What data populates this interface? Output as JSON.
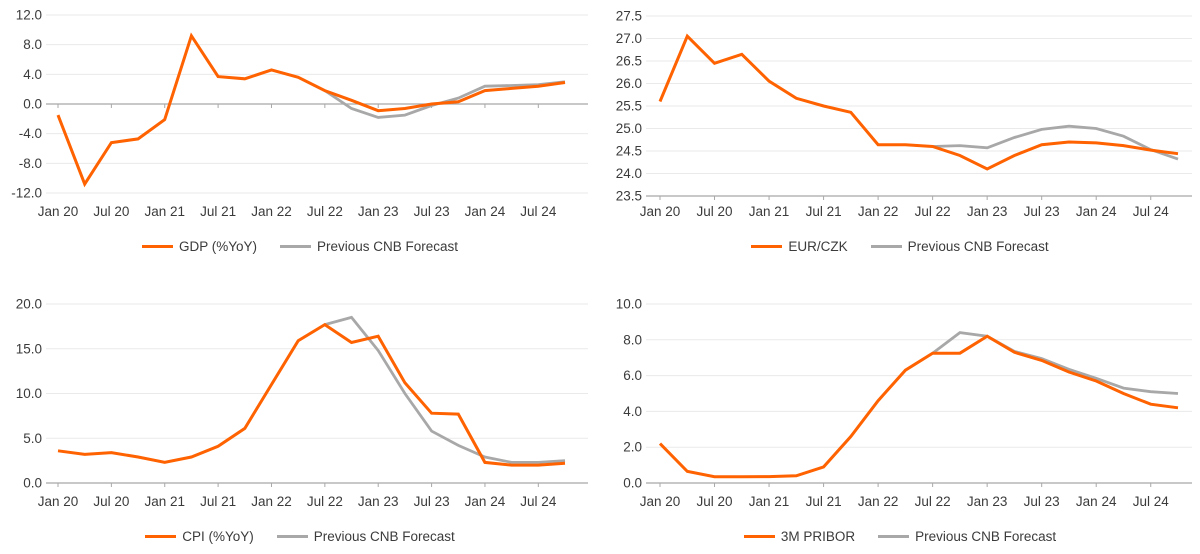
{
  "colors": {
    "series_orange": "#FF6200",
    "forecast_gray": "#A8A8A8",
    "gridline": "#EAEAEA",
    "axis": "#A8A8A8",
    "text": "#3B3B3B",
    "background": "#FFFFFF"
  },
  "charts": [
    {
      "id": "gdp",
      "legend": {
        "series_label": "GDP (%YoY)",
        "forecast_label": "Previous CNB Forecast"
      },
      "chart_data": {
        "type": "line",
        "x_tick_labels": [
          "Jan 20",
          "Jul 20",
          "Jan 21",
          "Jul 21",
          "Jan 22",
          "Jul 22",
          "Jan 23",
          "Jul 23",
          "Jan 24",
          "Jul 24"
        ],
        "points_per_label": 2,
        "n_points": 20,
        "ylim": [
          -12,
          12
        ],
        "y_ticks": [
          12,
          8,
          4,
          0,
          -4,
          -8,
          -12
        ],
        "baseline": 0,
        "grid": "horizontal",
        "legend_position": "bottom",
        "series": [
          {
            "name": "GDP (%YoY)",
            "color": "#FF6200",
            "values": [
              -1.5,
              -10.8,
              -5.2,
              -4.7,
              -2.1,
              9.2,
              3.7,
              3.4,
              4.6,
              3.6,
              1.8,
              0.5,
              -0.9,
              -0.6,
              0.0,
              0.3,
              1.8,
              2.1,
              2.4,
              2.9
            ]
          },
          {
            "name": "Previous CNB Forecast",
            "color": "#A8A8A8",
            "values": [
              null,
              null,
              null,
              null,
              null,
              null,
              null,
              null,
              null,
              null,
              1.8,
              -0.6,
              -1.8,
              -1.5,
              -0.2,
              0.8,
              2.4,
              2.5,
              2.6,
              3.0
            ]
          }
        ]
      }
    },
    {
      "id": "eurczk",
      "legend": {
        "series_label": "EUR/CZK",
        "forecast_label": "Previous CNB Forecast"
      },
      "chart_data": {
        "type": "line",
        "x_tick_labels": [
          "Jan 20",
          "Jul 20",
          "Jan 21",
          "Jul 21",
          "Jan 22",
          "Jul 22",
          "Jan 23",
          "Jul 23",
          "Jan 24",
          "Jul 24"
        ],
        "points_per_label": 2,
        "n_points": 20,
        "ylim": [
          23.5,
          27.5
        ],
        "y_ticks": [
          27.5,
          27.0,
          26.5,
          26.0,
          25.5,
          25.0,
          24.5,
          24.0,
          23.5
        ],
        "baseline": 23.5,
        "grid": "horizontal",
        "legend_position": "bottom",
        "series": [
          {
            "name": "EUR/CZK",
            "color": "#FF6200",
            "values": [
              25.6,
              27.05,
              26.45,
              26.65,
              26.05,
              25.67,
              25.5,
              25.36,
              24.64,
              24.64,
              24.6,
              24.4,
              24.1,
              24.4,
              24.64,
              24.7,
              24.68,
              24.62,
              24.52,
              24.44
            ]
          },
          {
            "name": "Previous CNB Forecast",
            "color": "#A8A8A8",
            "values": [
              null,
              null,
              null,
              null,
              null,
              null,
              null,
              null,
              null,
              null,
              24.6,
              24.62,
              24.57,
              24.8,
              24.98,
              25.05,
              25.0,
              24.83,
              24.53,
              24.32
            ]
          }
        ]
      }
    },
    {
      "id": "cpi",
      "legend": {
        "series_label": "CPI (%YoY)",
        "forecast_label": "Previous CNB Forecast"
      },
      "chart_data": {
        "type": "line",
        "x_tick_labels": [
          "Jan 20",
          "Jul 20",
          "Jan 21",
          "Jul 21",
          "Jan 22",
          "Jul 22",
          "Jan 23",
          "Jul 23",
          "Jan 24",
          "Jul 24"
        ],
        "points_per_label": 2,
        "n_points": 20,
        "ylim": [
          0,
          20
        ],
        "y_ticks": [
          20,
          15,
          10,
          5,
          0
        ],
        "baseline": 0,
        "grid": "horizontal",
        "legend_position": "bottom",
        "series": [
          {
            "name": "CPI (%YoY)",
            "color": "#FF6200",
            "values": [
              3.6,
              3.2,
              3.4,
              2.9,
              2.3,
              2.9,
              4.1,
              6.1,
              11.0,
              15.9,
              17.7,
              15.7,
              16.4,
              11.2,
              7.8,
              7.7,
              2.3,
              2.0,
              2.0,
              2.2
            ]
          },
          {
            "name": "Previous CNB Forecast",
            "color": "#A8A8A8",
            "values": [
              null,
              null,
              null,
              null,
              null,
              null,
              null,
              null,
              null,
              null,
              17.7,
              18.5,
              14.8,
              10.0,
              5.8,
              4.2,
              2.9,
              2.3,
              2.3,
              2.5
            ]
          }
        ]
      }
    },
    {
      "id": "pribor",
      "legend": {
        "series_label": "3M PRIBOR",
        "forecast_label": "Previous CNB Forecast"
      },
      "chart_data": {
        "type": "line",
        "x_tick_labels": [
          "Jan 20",
          "Jul 20",
          "Jan 21",
          "Jul 21",
          "Jan 22",
          "Jul 22",
          "Jan 23",
          "Jul 23",
          "Jan 24",
          "Jul 24"
        ],
        "points_per_label": 2,
        "n_points": 20,
        "ylim": [
          0,
          10
        ],
        "y_ticks": [
          10,
          8,
          6,
          4,
          2,
          0
        ],
        "baseline": 0,
        "grid": "horizontal",
        "legend_position": "bottom",
        "series": [
          {
            "name": "3M PRIBOR",
            "color": "#FF6200",
            "values": [
              2.2,
              0.65,
              0.35,
              0.35,
              0.36,
              0.4,
              0.9,
              2.6,
              4.6,
              6.3,
              7.25,
              7.25,
              8.2,
              7.3,
              6.85,
              6.2,
              5.7,
              5.0,
              4.4,
              4.2
            ]
          },
          {
            "name": "Previous CNB Forecast",
            "color": "#A8A8A8",
            "values": [
              null,
              null,
              null,
              null,
              null,
              null,
              null,
              null,
              null,
              null,
              7.25,
              8.4,
              8.2,
              7.35,
              6.95,
              6.35,
              5.85,
              5.3,
              5.1,
              5.0
            ]
          }
        ]
      }
    }
  ]
}
